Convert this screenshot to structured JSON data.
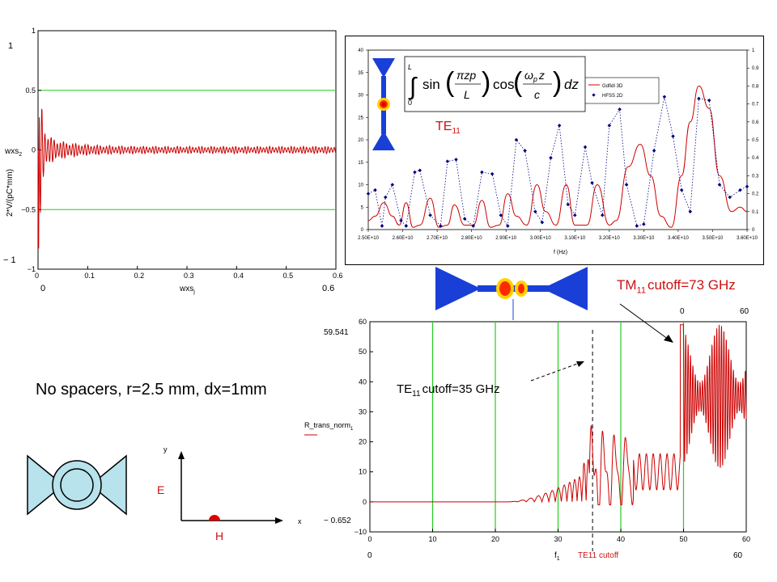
{
  "slide": {
    "caption": "No spacers, r=2.5 mm, dx=1mm",
    "axes_labels": {
      "y": "y",
      "x": "x",
      "e": "E",
      "h": "H"
    }
  },
  "colors": {
    "trace": "#cc0000",
    "grid_green": "#22cc22",
    "blue_shape": "#1a3fd6",
    "cross_section_fill": "#b8e2ec"
  },
  "chart_data": [
    {
      "type": "line",
      "name": "wake_potential",
      "ylabel": "2*V/(pC*mm)",
      "y_var": "wxs",
      "y_sub": "2",
      "x_var": "wxs",
      "x_sub": "j",
      "xlim": [
        0,
        0.6
      ],
      "ylim": [
        -1,
        1
      ],
      "x_ticks": [
        "0",
        "0.1",
        "0.2",
        "0.3",
        "0.4",
        "0.5",
        "0.6"
      ],
      "y_ticks": [
        "1",
        "0.5",
        "0",
        "−0.5",
        "−1"
      ],
      "x_corner_labels": {
        "min": "0",
        "max": "0.6"
      },
      "y_corner_labels": {
        "max": "1",
        "min": "− 1"
      },
      "hlines": [
        0.5,
        -0.5
      ],
      "description_signal": "decaying oscillation around 0, starting near ±0.9 at x≈0, settling to amplitude ≈0.03 by x≈0.1"
    },
    {
      "type": "line",
      "name": "gdfidl_vs_hfss",
      "xlabel": "f (Hz)",
      "x_ticks": [
        "2.50E+10",
        "2.60E+10",
        "2.70E+10",
        "2.80E+10",
        "2.90E+10",
        "3.00E+10",
        "3.10E+10",
        "3.20E+10",
        "3.30E+10",
        "3.40E+10",
        "3.50E+10",
        "3.60E+10"
      ],
      "y_left_ticks": [
        "40",
        "35",
        "30",
        "25",
        "20",
        "15",
        "10",
        "5",
        "0"
      ],
      "y_right_ticks": [
        "1",
        "0.9",
        "0.8",
        "0.7",
        "0.6",
        "0.5",
        "0.4",
        "0.3",
        "0.2",
        "0.1",
        "0"
      ],
      "ylim_left": [
        0,
        40
      ],
      "ylim_right": [
        0,
        1
      ],
      "xlim": [
        25,
        36
      ],
      "legend": [
        "GdfidI 3D",
        "HFSS 2D"
      ],
      "mode_label": "TE",
      "mode_sub": "11",
      "formula_parts": {
        "upper": "L",
        "lower": "0",
        "sin_num": "πzp",
        "sin_den": "L",
        "cos_num": "ω",
        "cos_num_sub": "p",
        "cos_num_tail": "z",
        "cos_den": "c",
        "dz": "dz",
        "sin": "sin",
        "cos": "cos"
      },
      "series": [
        {
          "name": "GdfidI 3D",
          "axis": "left",
          "x": [
            25.0,
            25.2,
            25.45,
            25.7,
            25.9,
            26.1,
            26.3,
            26.5,
            26.8,
            27.05,
            27.3,
            27.5,
            27.8,
            28.05,
            28.3,
            28.55,
            28.8,
            29.05,
            29.3,
            29.6,
            29.9,
            30.15,
            30.45,
            30.75,
            31.0,
            31.35,
            31.65,
            32.0,
            32.2,
            32.55,
            32.9,
            33.2,
            33.5,
            33.8,
            34.1,
            34.35,
            34.6,
            34.9,
            35.2,
            35.55,
            35.8,
            36.0
          ],
          "y": [
            2,
            3,
            6,
            3,
            1,
            6,
            0.5,
            1,
            7,
            0.5,
            1,
            5.5,
            1,
            1,
            6.5,
            0.5,
            1,
            8,
            3,
            1,
            10,
            4,
            1,
            10,
            1,
            1,
            10,
            1,
            2,
            14,
            19,
            12,
            3,
            0.5,
            12,
            24,
            32,
            27,
            12,
            4,
            5,
            4
          ]
        },
        {
          "name": "HFSS 2D",
          "axis": "right",
          "x": [
            25.0,
            25.2,
            25.4,
            25.5,
            25.7,
            25.95,
            26.1,
            26.35,
            26.5,
            26.8,
            27.1,
            27.3,
            27.55,
            27.8,
            28.05,
            28.3,
            28.6,
            28.85,
            29.05,
            29.3,
            29.55,
            29.85,
            30.05,
            30.3,
            30.55,
            30.8,
            31.0,
            31.3,
            31.5,
            31.8,
            32.0,
            32.3,
            32.5,
            32.8,
            33.0,
            33.3,
            33.6,
            33.85,
            34.1,
            34.35,
            34.6,
            34.9,
            35.2,
            35.5,
            35.8,
            36.0
          ],
          "y": [
            0.2,
            0.22,
            0.02,
            0.18,
            0.25,
            0.05,
            0.02,
            0.32,
            0.33,
            0.08,
            0.02,
            0.38,
            0.39,
            0.06,
            0.02,
            0.32,
            0.31,
            0.08,
            0.02,
            0.5,
            0.44,
            0.1,
            0.04,
            0.4,
            0.58,
            0.14,
            0.08,
            0.46,
            0.26,
            0.08,
            0.58,
            0.67,
            0.25,
            0.02,
            0.03,
            0.44,
            0.74,
            0.52,
            0.22,
            0.1,
            0.73,
            0.72,
            0.25,
            0.18,
            0.22,
            0.24
          ]
        }
      ]
    },
    {
      "type": "line",
      "name": "transmission_spectrum",
      "ylabel_var": "R_trans_norm",
      "ylabel_sub": "1",
      "x_var": "f",
      "x_sub": "1",
      "xlim": [
        0,
        60
      ],
      "ylim": [
        -10,
        60
      ],
      "x_ticks": [
        "0",
        "10",
        "20",
        "30",
        "40",
        "50",
        "60"
      ],
      "y_ticks": [
        "60",
        "50",
        "40",
        "30",
        "20",
        "10",
        "0",
        "−10"
      ],
      "x_corner_labels": {
        "min": "0",
        "max": "60"
      },
      "y_corner_labels": {
        "max": "59.541",
        "min": "− 0.652"
      },
      "x_corner_subs": {
        "min": "",
        "max": ""
      },
      "top_labels": {
        "zero": "0",
        "sixty": "60"
      },
      "green_vlines": [
        10,
        20,
        30,
        40,
        50
      ],
      "cutoff_line": 35.5,
      "cutoff_label": "TE11 cutoff",
      "annotations": [
        {
          "base": "TE",
          "sub": "11",
          "tail": "cutoff=35 GHz"
        },
        {
          "base": "TM",
          "sub": "11",
          "tail": "cutoff=73 GHz"
        }
      ]
    }
  ]
}
